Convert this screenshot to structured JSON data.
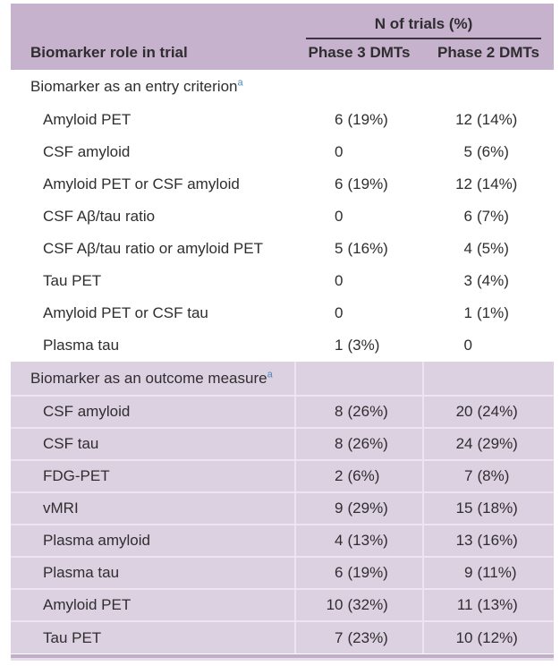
{
  "table": {
    "span_header": "N of trials (%)",
    "columns": [
      "Biomarker role in trial",
      "Phase 3 DMTs",
      "Phase 2 DMTs"
    ],
    "sections": [
      {
        "title": "Biomarker as an entry criterion",
        "footnote_marker": "a",
        "rows": [
          {
            "label": "Amyloid PET",
            "phase3": "6 (19%)",
            "phase2": "12 (14%)"
          },
          {
            "label": "CSF amyloid",
            "phase3": "0",
            "phase2": "5 (6%)"
          },
          {
            "label": "Amyloid PET or CSF amyloid",
            "phase3": "6 (19%)",
            "phase2": "12 (14%)"
          },
          {
            "label": "CSF Aβ/tau ratio",
            "phase3": "0",
            "phase2": "6 (7%)"
          },
          {
            "label": "CSF Aβ/tau ratio or amyloid PET",
            "phase3": "5 (16%)",
            "phase2": "4 (5%)"
          },
          {
            "label": "Tau PET",
            "phase3": "0",
            "phase2": "3 (4%)"
          },
          {
            "label": "Amyloid PET or CSF tau",
            "phase3": "0",
            "phase2": "1 (1%)"
          },
          {
            "label": "Plasma tau",
            "phase3": "1 (3%)",
            "phase2": "0"
          }
        ]
      },
      {
        "title": "Biomarker as an outcome measure",
        "footnote_marker": "a",
        "rows": [
          {
            "label": "CSF amyloid",
            "phase3": "8 (26%)",
            "phase2": "20 (24%)"
          },
          {
            "label": "CSF tau",
            "phase3": "8 (26%)",
            "phase2": "24 (29%)"
          },
          {
            "label": "FDG-PET",
            "phase3": "2 (6%)",
            "phase2": "7 (8%)"
          },
          {
            "label": "vMRI",
            "phase3": "9 (29%)",
            "phase2": "15 (18%)"
          },
          {
            "label": "Plasma amyloid",
            "phase3": "4 (13%)",
            "phase2": "13 (16%)"
          },
          {
            "label": "Plasma tau",
            "phase3": "6 (19%)",
            "phase2": "9 (11%)"
          },
          {
            "label": "Amyloid PET",
            "phase3": "10 (32%)",
            "phase2": "11 (13%)"
          },
          {
            "label": "Tau PET",
            "phase3": "7 (23%)",
            "phase2": "10 (12%)"
          }
        ]
      }
    ]
  },
  "colors": {
    "header_background": "#c6b2cd",
    "shaded_row_background": "#dcd1e1",
    "separator_line": "#ece4f0",
    "header_rule": "#3b3340",
    "bottom_bar": "#c2aec9",
    "footnote_marker_blue": "#4d86bd",
    "text": "#2f2d30"
  },
  "chart_data": {
    "type": "table",
    "title": "N of trials (%)",
    "columns": [
      "Biomarker role in trial",
      "Phase 3 DMTs",
      "Phase 2 DMTs"
    ],
    "rows": [
      [
        "Biomarker as an entry criterion",
        "",
        ""
      ],
      [
        "Amyloid PET",
        "6 (19%)",
        "12 (14%)"
      ],
      [
        "CSF amyloid",
        "0",
        "5 (6%)"
      ],
      [
        "Amyloid PET or CSF amyloid",
        "6 (19%)",
        "12 (14%)"
      ],
      [
        "CSF Aβ/tau ratio",
        "0",
        "6 (7%)"
      ],
      [
        "CSF Aβ/tau ratio or amyloid PET",
        "5 (16%)",
        "4 (5%)"
      ],
      [
        "Tau PET",
        "0",
        "3 (4%)"
      ],
      [
        "Amyloid PET or CSF tau",
        "0",
        "1 (1%)"
      ],
      [
        "Plasma tau",
        "1 (3%)",
        "0"
      ],
      [
        "Biomarker as an outcome measure",
        "",
        ""
      ],
      [
        "CSF amyloid",
        "8 (26%)",
        "20 (24%)"
      ],
      [
        "CSF tau",
        "8 (26%)",
        "24 (29%)"
      ],
      [
        "FDG-PET",
        "2 (6%)",
        "7 (8%)"
      ],
      [
        "vMRI",
        "9 (29%)",
        "15 (18%)"
      ],
      [
        "Plasma amyloid",
        "4 (13%)",
        "13 (16%)"
      ],
      [
        "Plasma tau",
        "6 (19%)",
        "9 (11%)"
      ],
      [
        "Amyloid PET",
        "10 (32%)",
        "11 (13%)"
      ],
      [
        "Tau PET",
        "7 (23%)",
        "10 (12%)"
      ]
    ]
  }
}
